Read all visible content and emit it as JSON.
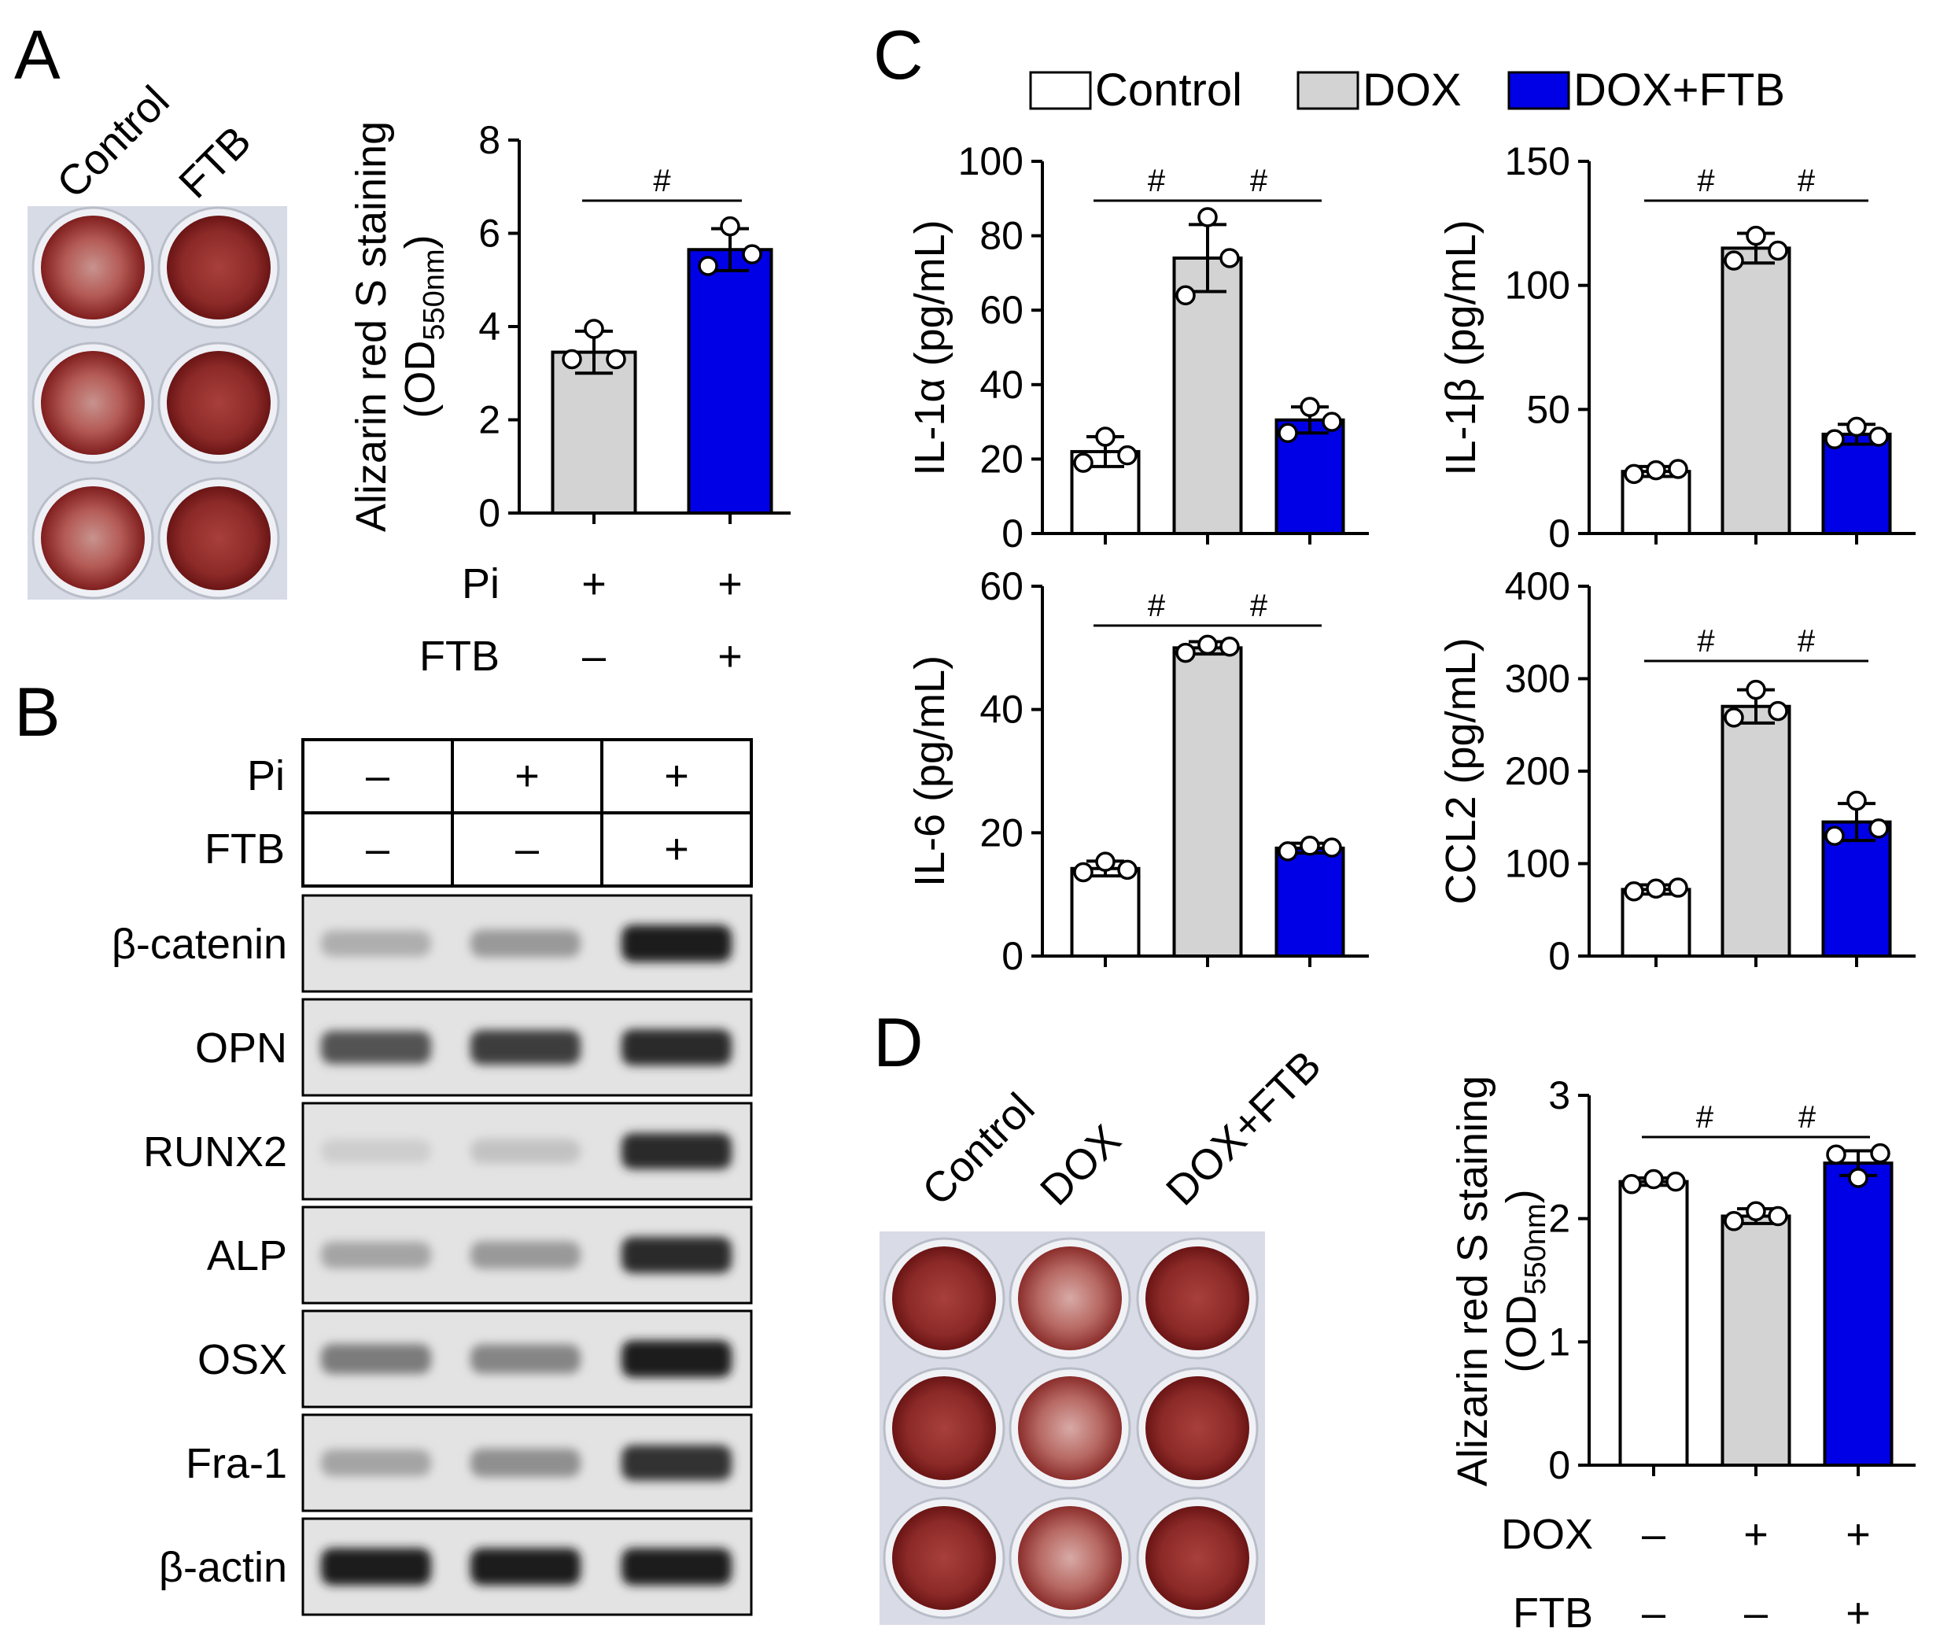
{
  "panel_labels": {
    "a": "A",
    "b": "B",
    "c": "C",
    "d": "D"
  },
  "colors": {
    "control": "#ffffff",
    "dox": "#d3d3d3",
    "ftb": "#0000e6",
    "stain_dark": "#8a1c1c",
    "stain_light": "#c77a74",
    "plate": "#d6dbe6"
  },
  "panelA": {
    "plate_labels": [
      "Control",
      "FTB"
    ],
    "row_labels": [
      "Pi",
      "FTB"
    ],
    "signs": [
      [
        "+",
        "+"
      ],
      [
        "–",
        "+"
      ]
    ]
  },
  "panelB": {
    "header_rows": [
      {
        "label": "Pi",
        "signs": [
          "–",
          "+",
          "+"
        ]
      },
      {
        "label": "FTB",
        "signs": [
          "–",
          "–",
          "+"
        ]
      }
    ],
    "bands": [
      {
        "label": "β-catenin",
        "intensity": [
          0.25,
          0.35,
          0.95
        ]
      },
      {
        "label": "OPN",
        "intensity": [
          0.7,
          0.8,
          0.9
        ]
      },
      {
        "label": "RUNX2",
        "intensity": [
          0.1,
          0.15,
          0.9
        ]
      },
      {
        "label": "ALP",
        "intensity": [
          0.3,
          0.35,
          0.9
        ]
      },
      {
        "label": "OSX",
        "intensity": [
          0.5,
          0.45,
          0.95
        ]
      },
      {
        "label": "Fra-1",
        "intensity": [
          0.3,
          0.4,
          0.85
        ]
      },
      {
        "label": "β-actin",
        "intensity": [
          0.95,
          0.95,
          0.95
        ]
      }
    ]
  },
  "panelC": {
    "legend": [
      "Control",
      "DOX",
      "DOX+FTB"
    ]
  },
  "panelD": {
    "plate_labels": [
      "Control",
      "DOX",
      "DOX+FTB"
    ],
    "row_labels": [
      "DOX",
      "FTB"
    ],
    "signs": [
      [
        "–",
        "+",
        "+"
      ],
      [
        "–",
        "–",
        "+"
      ]
    ]
  },
  "chart_data": [
    {
      "id": "A",
      "type": "bar",
      "ylabel": "Alizarin red S staining",
      "ylabel_sub_pre": "(OD",
      "ylabel_sub": "550nm",
      "ylabel_sub_post": ")",
      "ylim": [
        0,
        8
      ],
      "yticks": [
        0,
        2,
        4,
        6,
        8
      ],
      "values": [
        3.45,
        5.65
      ],
      "errors": [
        0.45,
        0.45
      ],
      "points": [
        [
          3.3,
          3.95,
          3.3
        ],
        [
          5.3,
          6.15,
          5.55
        ]
      ],
      "colors": [
        "#d3d3d3",
        "#0000e6"
      ],
      "sig": [
        {
          "from": 0,
          "to": 1,
          "label": "#"
        }
      ]
    },
    {
      "id": "C1",
      "type": "bar",
      "ylabel": "IL-1α (pg/mL)",
      "ylim": [
        0,
        100
      ],
      "yticks": [
        0,
        20,
        40,
        60,
        80,
        100
      ],
      "values": [
        22,
        74,
        30.5
      ],
      "errors": [
        4,
        9,
        3.5
      ],
      "points": [
        [
          19,
          26,
          21
        ],
        [
          64,
          85,
          74
        ],
        [
          27,
          34,
          30
        ]
      ],
      "colors": [
        "#ffffff",
        "#d3d3d3",
        "#0000e6"
      ],
      "sig": [
        {
          "from": 0,
          "to": 1,
          "label": "#"
        },
        {
          "from": 1,
          "to": 2,
          "label": "#"
        }
      ]
    },
    {
      "id": "C2",
      "type": "bar",
      "ylabel": "IL-1β (pg/mL)",
      "ylim": [
        0,
        150
      ],
      "yticks": [
        0,
        50,
        100,
        150
      ],
      "values": [
        25,
        115,
        40
      ],
      "errors": [
        2,
        6,
        4
      ],
      "points": [
        [
          24,
          25.5,
          26
        ],
        [
          110,
          120,
          114
        ],
        [
          38,
          43,
          39
        ]
      ],
      "colors": [
        "#ffffff",
        "#d3d3d3",
        "#0000e6"
      ],
      "sig": [
        {
          "from": 0,
          "to": 1,
          "label": "#"
        },
        {
          "from": 1,
          "to": 2,
          "label": "#"
        }
      ]
    },
    {
      "id": "C3",
      "type": "bar",
      "ylabel": "IL-6 (pg/mL)",
      "ylim": [
        0,
        60
      ],
      "yticks": [
        0,
        20,
        40,
        60
      ],
      "values": [
        14.2,
        50,
        17.5
      ],
      "errors": [
        1.2,
        1.0,
        0.8
      ],
      "points": [
        [
          13.6,
          15.3,
          14
        ],
        [
          49.2,
          50.5,
          50.2
        ],
        [
          17,
          17.9,
          17.6
        ]
      ],
      "colors": [
        "#ffffff",
        "#d3d3d3",
        "#0000e6"
      ],
      "sig": [
        {
          "from": 0,
          "to": 1,
          "label": "#"
        },
        {
          "from": 1,
          "to": 2,
          "label": "#"
        }
      ]
    },
    {
      "id": "C4",
      "type": "bar",
      "ylabel": "CCL2 (pg/mL)",
      "ylim": [
        0,
        400
      ],
      "yticks": [
        0,
        100,
        200,
        300,
        400
      ],
      "values": [
        72,
        270,
        145
      ],
      "errors": [
        5,
        18,
        20
      ],
      "points": [
        [
          70,
          73,
          74
        ],
        [
          258,
          288,
          265
        ],
        [
          130,
          168,
          138
        ]
      ],
      "colors": [
        "#ffffff",
        "#d3d3d3",
        "#0000e6"
      ],
      "sig": [
        {
          "from": 0,
          "to": 1,
          "label": "#"
        },
        {
          "from": 1,
          "to": 2,
          "label": "#"
        }
      ]
    },
    {
      "id": "D",
      "type": "bar",
      "ylabel": "Alizarin red S staining",
      "ylabel_sub_pre": "(OD",
      "ylabel_sub": "550nm",
      "ylabel_sub_post": ")",
      "ylim": [
        0,
        3
      ],
      "yticks": [
        0,
        1,
        2,
        3
      ],
      "values": [
        2.3,
        2.02,
        2.45
      ],
      "errors": [
        0.03,
        0.06,
        0.1
      ],
      "points": [
        [
          2.28,
          2.32,
          2.3
        ],
        [
          1.98,
          2.06,
          2.02
        ],
        [
          2.52,
          2.33,
          2.53
        ]
      ],
      "colors": [
        "#ffffff",
        "#d3d3d3",
        "#0000e6"
      ],
      "sig": [
        {
          "from": 0,
          "to": 1,
          "label": "#"
        },
        {
          "from": 1,
          "to": 2,
          "label": "#"
        }
      ]
    }
  ]
}
